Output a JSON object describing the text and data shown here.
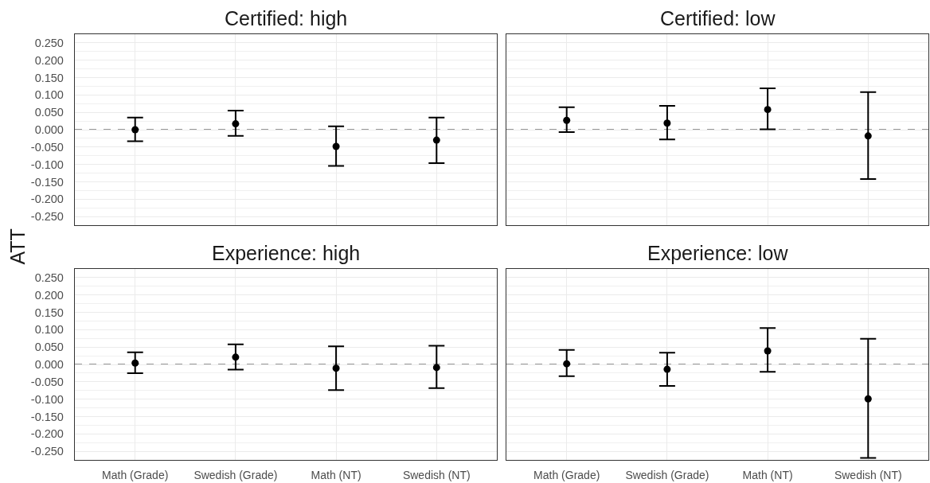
{
  "chart_data": [
    {
      "type": "scatter",
      "title": "Certified: high",
      "ylabel": "ATT",
      "categories": [
        "Math (Grade)",
        "Swedish (Grade)",
        "Math (NT)",
        "Swedish (NT)"
      ],
      "values": [
        0.0,
        0.017,
        -0.048,
        -0.03
      ],
      "errors": [
        [
          -0.033,
          0.035
        ],
        [
          -0.018,
          0.055
        ],
        [
          -0.104,
          0.01
        ],
        [
          -0.096,
          0.035
        ]
      ],
      "color": "#000000",
      "marker": "circle",
      "ylim": [
        -0.275,
        0.275
      ],
      "yticks": [
        {
          "value": -0.25,
          "label": "-0.250"
        },
        {
          "value": -0.2,
          "label": "-0.200"
        },
        {
          "value": -0.15,
          "label": "-0.150"
        },
        {
          "value": -0.1,
          "label": "-0.100"
        },
        {
          "value": -0.05,
          "label": "-0.050"
        },
        {
          "value": 0,
          "label": "0.000"
        },
        {
          "value": 0.05,
          "label": "0.050"
        },
        {
          "value": 0.1,
          "label": "0.100"
        },
        {
          "value": 0.15,
          "label": "0.150"
        },
        {
          "value": 0.2,
          "label": "0.200"
        },
        {
          "value": 0.25,
          "label": "0.250"
        }
      ],
      "grid": true,
      "ref_lines": [
        {
          "axis": "y",
          "value": 0,
          "line_style": "dashed",
          "color": "#333333"
        }
      ],
      "tick_labels": "y"
    },
    {
      "type": "scatter",
      "title": "Certified: low",
      "categories": [
        "Math (Grade)",
        "Swedish (Grade)",
        "Math (NT)",
        "Swedish (NT)"
      ],
      "values": [
        0.027,
        0.019,
        0.058,
        -0.018
      ],
      "errors": [
        [
          -0.007,
          0.065
        ],
        [
          -0.028,
          0.069
        ],
        [
          0.001,
          0.119
        ],
        [
          -0.142,
          0.108
        ]
      ],
      "color": "#000000",
      "marker": "circle",
      "ylim": [
        -0.275,
        0.275
      ],
      "yticks": [
        {
          "value": -0.25,
          "label": null
        },
        {
          "value": -0.2,
          "label": null
        },
        {
          "value": -0.15,
          "label": null
        },
        {
          "value": -0.1,
          "label": null
        },
        {
          "value": -0.05,
          "label": null
        },
        {
          "value": 0,
          "label": null
        },
        {
          "value": 0.05,
          "label": null
        },
        {
          "value": 0.1,
          "label": null
        },
        {
          "value": 0.15,
          "label": null
        },
        {
          "value": 0.2,
          "label": null
        },
        {
          "value": 0.25,
          "label": null
        }
      ],
      "grid": true,
      "ref_lines": [
        {
          "axis": "y",
          "value": 0,
          "line_style": "dashed",
          "color": "#333333"
        }
      ],
      "tick_labels": false
    },
    {
      "type": "scatter",
      "title": "Experience: high",
      "categories": [
        "Math (Grade)",
        "Swedish (Grade)",
        "Math (NT)",
        "Swedish (NT)"
      ],
      "values": [
        0.004,
        0.021,
        -0.011,
        -0.009
      ],
      "errors": [
        [
          -0.025,
          0.035
        ],
        [
          -0.015,
          0.058
        ],
        [
          -0.074,
          0.052
        ],
        [
          -0.068,
          0.054
        ]
      ],
      "color": "#000000",
      "marker": "circle",
      "ylim": [
        -0.275,
        0.275
      ],
      "yticks": [
        {
          "value": -0.25,
          "label": "-0.250"
        },
        {
          "value": -0.2,
          "label": "-0.200"
        },
        {
          "value": -0.15,
          "label": "-0.150"
        },
        {
          "value": -0.1,
          "label": "-0.100"
        },
        {
          "value": -0.05,
          "label": "-0.050"
        },
        {
          "value": 0,
          "label": "0.000"
        },
        {
          "value": 0.05,
          "label": "0.050"
        },
        {
          "value": 0.1,
          "label": "0.100"
        },
        {
          "value": 0.15,
          "label": "0.150"
        },
        {
          "value": 0.2,
          "label": "0.200"
        },
        {
          "value": 0.25,
          "label": "0.250"
        }
      ],
      "grid": true,
      "ref_lines": [
        {
          "axis": "y",
          "value": 0,
          "line_style": "dashed",
          "color": "#333333"
        }
      ]
    },
    {
      "type": "scatter",
      "title": "Experience: low",
      "categories": [
        "Math (Grade)",
        "Swedish (Grade)",
        "Math (NT)",
        "Swedish (NT)"
      ],
      "values": [
        0.002,
        -0.014,
        0.039,
        -0.099
      ],
      "errors": [
        [
          -0.034,
          0.042
        ],
        [
          -0.062,
          0.034
        ],
        [
          -0.021,
          0.105
        ],
        [
          -0.269,
          0.074
        ]
      ],
      "color": "#000000",
      "marker": "circle",
      "ylim": [
        -0.275,
        0.275
      ],
      "yticks": [
        {
          "value": -0.25,
          "label": null
        },
        {
          "value": -0.2,
          "label": null
        },
        {
          "value": -0.15,
          "label": null
        },
        {
          "value": -0.1,
          "label": null
        },
        {
          "value": -0.05,
          "label": null
        },
        {
          "value": 0,
          "label": null
        },
        {
          "value": 0.05,
          "label": null
        },
        {
          "value": 0.1,
          "label": null
        },
        {
          "value": 0.15,
          "label": null
        },
        {
          "value": 0.2,
          "label": null
        },
        {
          "value": 0.25,
          "label": null
        }
      ],
      "grid": true,
      "ref_lines": [
        {
          "axis": "y",
          "value": 0,
          "line_style": "dashed",
          "color": "#333333"
        }
      ],
      "tick_labels": "x"
    }
  ]
}
